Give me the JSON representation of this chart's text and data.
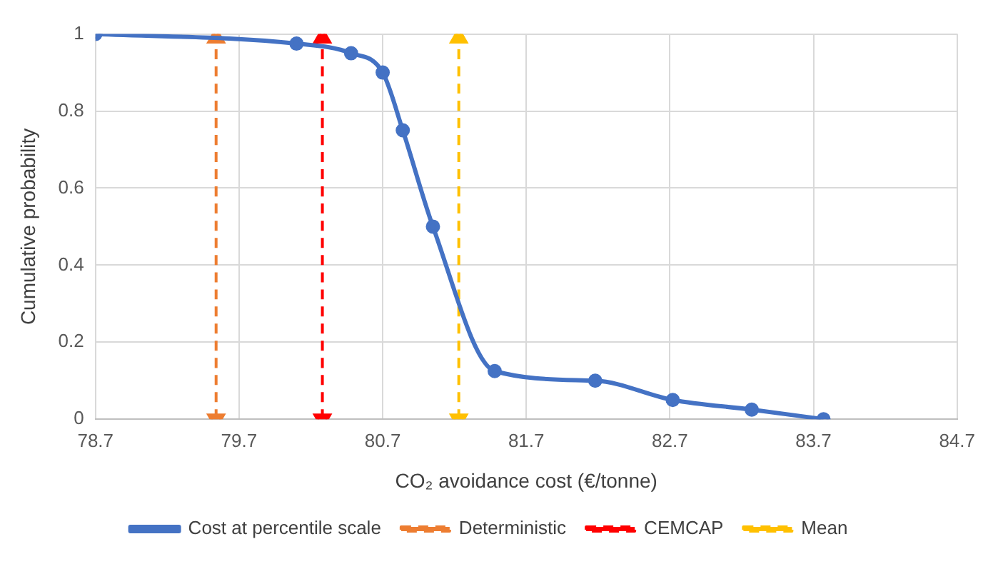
{
  "chart_data": {
    "type": "line",
    "xlabel": "CO₂ avoidance cost (€/tonne)",
    "ylabel": "Cumulative probability",
    "xlim": [
      78.7,
      84.7
    ],
    "xticks": [
      78.7,
      79.7,
      80.7,
      81.7,
      82.7,
      83.7,
      84.7
    ],
    "ylim": [
      0,
      1
    ],
    "yticks": [
      0,
      0.2,
      0.4,
      0.6,
      0.8,
      1
    ],
    "grid": true,
    "legend": "bottom",
    "series": [
      {
        "name": "Cost at percentile scale",
        "color": "#4472c4",
        "marker": "circle",
        "line_style": "solid",
        "x": [
          78.7,
          80.1,
          80.48,
          80.7,
          80.84,
          81.05,
          81.48,
          82.18,
          82.72,
          83.27,
          83.77
        ],
        "values": [
          1,
          0.975,
          0.95,
          0.9,
          0.75,
          0.5,
          0.125,
          0.1,
          0.05,
          0.025,
          0
        ]
      },
      {
        "name": "Deterministic",
        "color": "#ed7d31",
        "marker": "triangle",
        "line_style": "dashed",
        "x": [
          79.54,
          79.54
        ],
        "values": [
          0,
          0.99
        ]
      },
      {
        "name": "CEMCAP",
        "color": "#ff0000",
        "marker": "triangle",
        "line_style": "dashed",
        "x": [
          80.28,
          80.28
        ],
        "values": [
          0,
          0.99
        ]
      },
      {
        "name": "Mean",
        "color": "#ffc000",
        "marker": "triangle",
        "line_style": "dashed",
        "x": [
          81.23,
          81.23
        ],
        "values": [
          0,
          0.99
        ]
      }
    ]
  }
}
